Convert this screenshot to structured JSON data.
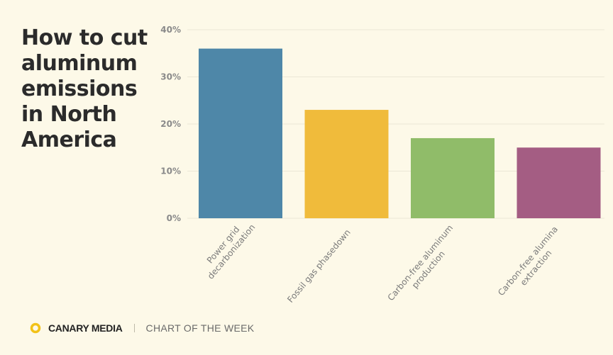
{
  "title": "How to cut aluminum emissions in North America",
  "footer": {
    "brand": "CANARY MEDIA",
    "tagline": "CHART OF THE WEEK"
  },
  "icons": {
    "logo": "canary-ring-icon"
  },
  "chart_data": {
    "type": "bar",
    "title": "How to cut aluminum emissions in North America",
    "xlabel": "",
    "ylabel": "",
    "ylim": [
      0,
      40
    ],
    "yticks": [
      "0%",
      "10%",
      "20%",
      "30%",
      "40%"
    ],
    "grid": true,
    "categories": [
      [
        "Power grid",
        "decarbonization"
      ],
      [
        "Fossil gas phasedown"
      ],
      [
        "Carbon-free aluminum",
        "production"
      ],
      [
        "Carbon-free alumina",
        "extraction"
      ]
    ],
    "values": [
      36,
      23,
      17,
      15
    ],
    "colors": [
      "#4e87a8",
      "#f0bb3b",
      "#90bc69",
      "#a45d83"
    ]
  }
}
